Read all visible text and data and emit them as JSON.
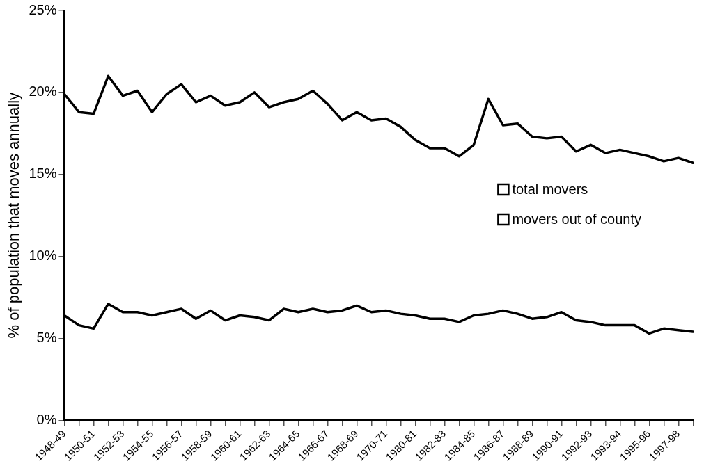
{
  "chart_data": {
    "type": "line",
    "ylabel": "% of population that moves annually",
    "categories": [
      "1948-49",
      null,
      "1950-51",
      null,
      "1952-53",
      null,
      "1954-55",
      null,
      "1956-57",
      null,
      "1958-59",
      null,
      "1960-61",
      null,
      "1962-63",
      null,
      "1964-65",
      null,
      "1966-67",
      null,
      "1968-69",
      null,
      "1970-71",
      null,
      "1980-81",
      null,
      "1982-83",
      null,
      "1984-85",
      null,
      "1986-87",
      null,
      "1988-89",
      null,
      "1990-91",
      null,
      "1992-93",
      null,
      "1993-94",
      null,
      "1995-96",
      null,
      "1997-98",
      null
    ],
    "series": [
      {
        "name": "total movers",
        "color": "#000000",
        "values": [
          19.9,
          18.8,
          18.7,
          21.0,
          19.8,
          20.1,
          18.8,
          19.9,
          20.5,
          19.4,
          19.8,
          19.2,
          19.4,
          20.0,
          19.1,
          19.4,
          19.6,
          20.1,
          19.3,
          18.3,
          18.8,
          18.3,
          18.4,
          17.9,
          17.1,
          16.6,
          16.6,
          16.1,
          16.8,
          19.6,
          18.0,
          18.1,
          17.3,
          17.2,
          17.3,
          16.4,
          16.8,
          16.3,
          16.5,
          16.3,
          16.1,
          15.8,
          16.0,
          15.7
        ]
      },
      {
        "name": "movers out of county",
        "color": "#000000",
        "values": [
          6.4,
          5.8,
          5.6,
          7.1,
          6.6,
          6.6,
          6.4,
          6.6,
          6.8,
          6.2,
          6.7,
          6.1,
          6.4,
          6.3,
          6.1,
          6.8,
          6.6,
          6.8,
          6.6,
          6.7,
          7.0,
          6.6,
          6.7,
          6.5,
          6.4,
          6.2,
          6.2,
          6.0,
          6.4,
          6.5,
          6.7,
          6.5,
          6.2,
          6.3,
          6.6,
          6.1,
          6.0,
          5.8,
          5.8,
          5.8,
          5.3,
          5.6,
          5.5,
          5.4
        ]
      }
    ],
    "ylim": [
      0,
      25
    ],
    "yticks": [
      {
        "value": 0,
        "label": "0%"
      },
      {
        "value": 5,
        "label": "5%"
      },
      {
        "value": 10,
        "label": "10%"
      },
      {
        "value": 15,
        "label": "15%"
      },
      {
        "value": 20,
        "label": "20%"
      },
      {
        "value": 25,
        "label": "25%"
      }
    ],
    "grid": false,
    "legend": "right",
    "marker": "none",
    "line_style": "solid"
  }
}
